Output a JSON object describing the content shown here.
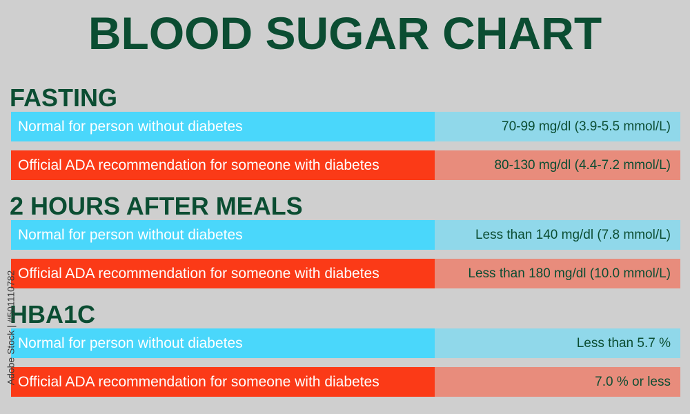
{
  "title": "BLOOD SUGAR CHART",
  "colors": {
    "heading": "#0b4d32",
    "normal_label_bg": "#4ad7fb",
    "normal_value_bg": "#90d8ea",
    "diabetes_label_bg": "#fb3a17",
    "diabetes_value_bg": "#e88c7c",
    "background": "#cfcfcf"
  },
  "sections": [
    {
      "heading": "FASTING",
      "rows": [
        {
          "label": "Normal for person without diabetes",
          "value": "70-99 mg/dl (3.9-5.5 mmol/L)"
        },
        {
          "label": "Official ADA recommendation for someone with diabetes",
          "value": "80-130 mg/dl (4.4-7.2 mmol/L)"
        }
      ]
    },
    {
      "heading": "2 HOURS AFTER MEALS",
      "rows": [
        {
          "label": "Normal for person without diabetes",
          "value": "Less than 140 mg/dl (7.8 mmol/L)"
        },
        {
          "label": "Official ADA recommendation for someone with diabetes",
          "value": "Less than 180 mg/dl (10.0 mmol/L)"
        }
      ]
    },
    {
      "heading": "HBA1C",
      "rows": [
        {
          "label": "Normal for person without diabetes",
          "value": "Less than 5.7 %"
        },
        {
          "label": "Official ADA recommendation for someone with diabetes",
          "value": "7.0 % or less"
        }
      ]
    }
  ],
  "watermark": "Adobe Stock | #501110782"
}
